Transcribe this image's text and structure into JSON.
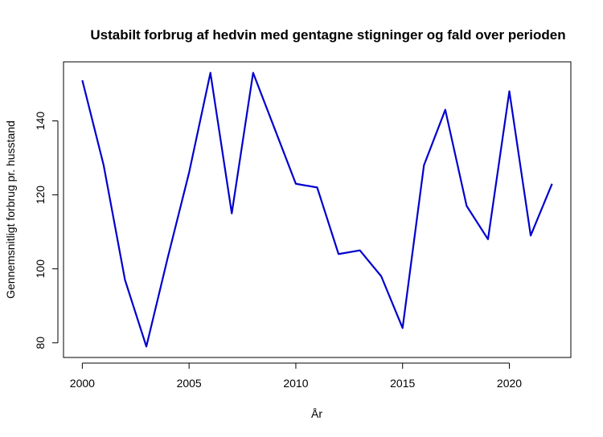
{
  "chart_data": {
    "type": "line",
    "title": "Ustabilt forbrug af hedvin med gentagne stigninger og fald over perioden",
    "xlabel": "År",
    "ylabel": "Gennemsnitligt forbrug pr. husstand",
    "x": [
      2000,
      2001,
      2002,
      2003,
      2004,
      2005,
      2006,
      2007,
      2008,
      2009,
      2010,
      2011,
      2012,
      2013,
      2014,
      2015,
      2016,
      2017,
      2018,
      2019,
      2020,
      2021,
      2022
    ],
    "series": [
      {
        "values": [
          151,
          128,
          97,
          79,
          103,
          126,
          153,
          115,
          153,
          138,
          123,
          122,
          104,
          105,
          98,
          84,
          128,
          143,
          117,
          108,
          148,
          109,
          123
        ],
        "color": "#0000cd"
      }
    ],
    "xticks": [
      2000,
      2005,
      2010,
      2015,
      2020
    ],
    "yticks": [
      80,
      100,
      120,
      140
    ],
    "xlim": [
      1999.12,
      2022.88
    ],
    "ylim": [
      76.04,
      155.96
    ],
    "grid": false,
    "legend": "none"
  }
}
